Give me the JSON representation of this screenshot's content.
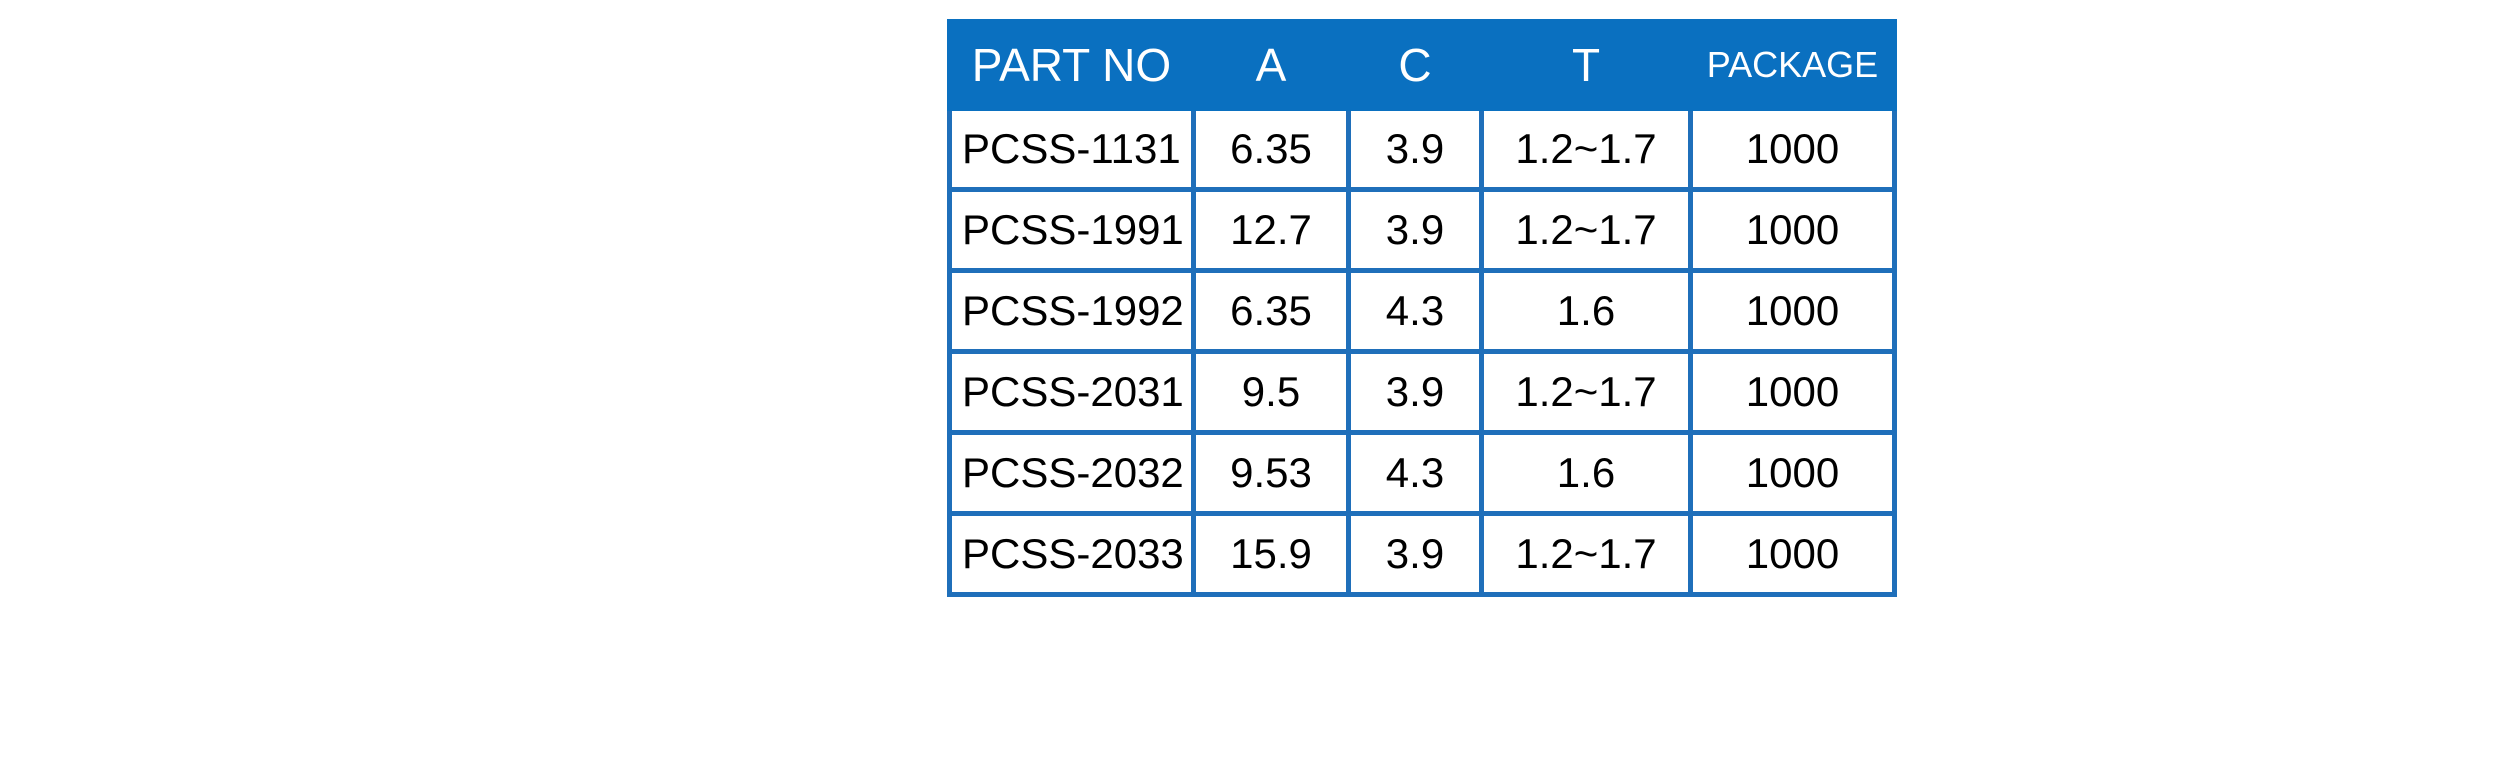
{
  "table": {
    "headers": [
      "PART NO",
      "A",
      "C",
      "T",
      "PACKAGE"
    ],
    "rows": [
      [
        "PCSS-1131",
        "6.35",
        "3.9",
        "1.2~1.7",
        "1000"
      ],
      [
        "PCSS-1991",
        "12.7",
        "3.9",
        "1.2~1.7",
        "1000"
      ],
      [
        "PCSS-1992",
        "6.35",
        "4.3",
        "1.6",
        "1000"
      ],
      [
        "PCSS-2031",
        "9.5",
        "3.9",
        "1.2~1.7",
        "1000"
      ],
      [
        "PCSS-2032",
        "9.53",
        "4.3",
        "1.6",
        "1000"
      ],
      [
        "PCSS-2033",
        "15.9",
        "3.9",
        "1.2~1.7",
        "1000"
      ]
    ]
  },
  "colors": {
    "header_background": "#0a70c0",
    "border": "#1f6fba",
    "header_text": "#ffffff",
    "body_text": "#000000"
  }
}
